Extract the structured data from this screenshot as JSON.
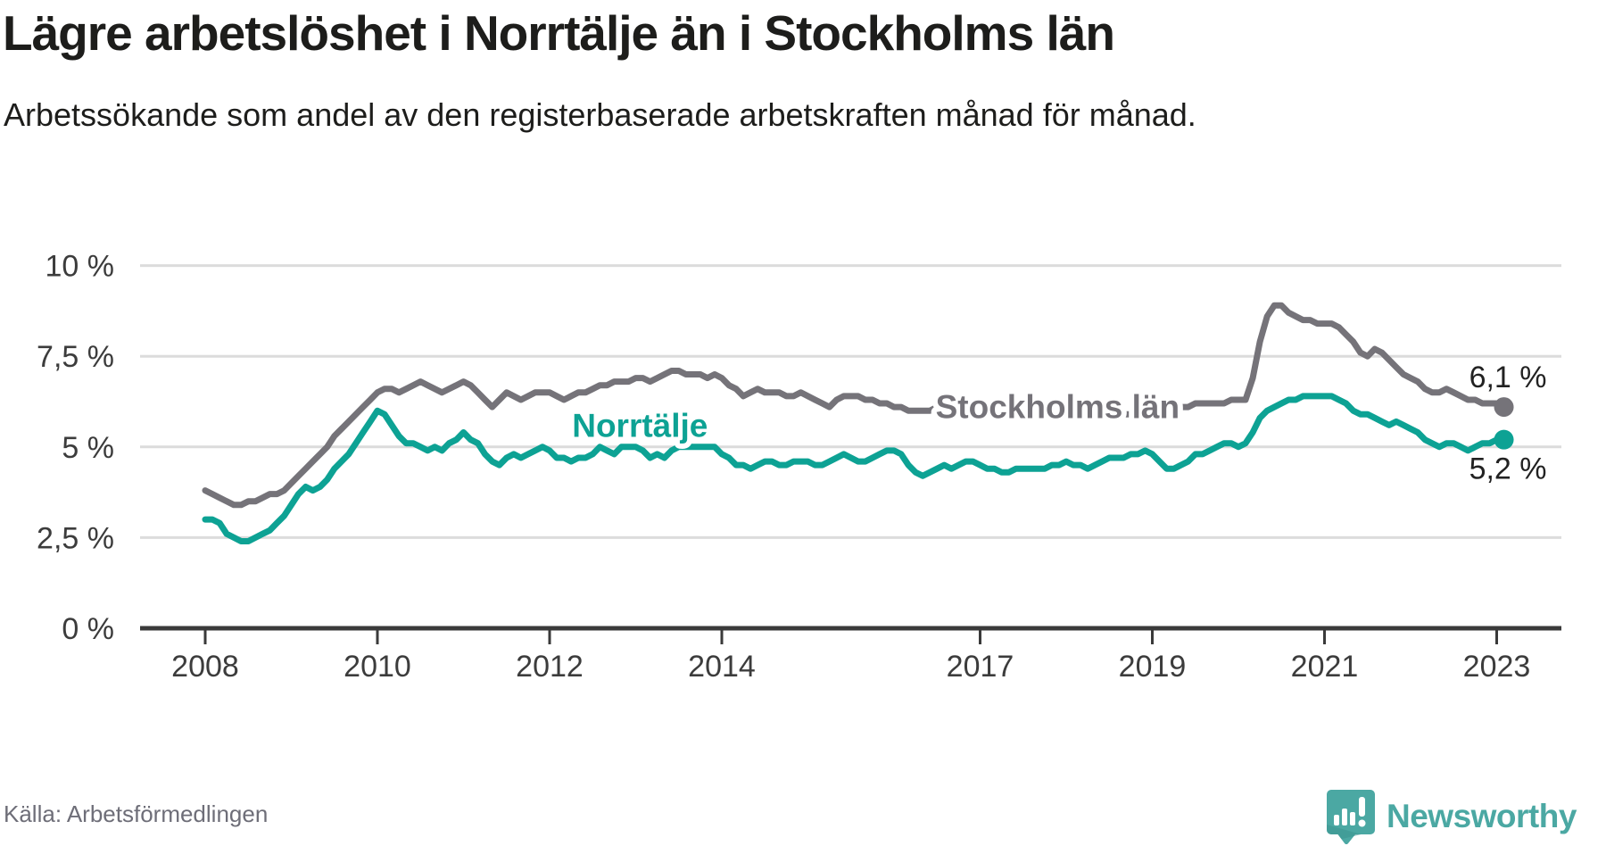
{
  "header": {
    "title": "Lägre arbetslöshet i Norrtälje än i Stockholms län",
    "subtitle": "Arbetssökande som andel av den registerbaserade arbetskraften månad för månad."
  },
  "footer": {
    "source": "Källa: Arbetsförmedlingen",
    "brand": "Newsworthy"
  },
  "colors": {
    "norrtalje_line": "#0da294",
    "stockholm_line": "#757379",
    "axis": "#3a3a3a",
    "grid": "#dcdcdc",
    "title_text": "#1d1d1b",
    "tick_text": "#3c3c3c",
    "end_label_text": "#222222",
    "source_text": "#6e6e78",
    "brand_teal": "#4ba8a3"
  },
  "chart_data": {
    "type": "line",
    "title": "Lägre arbetslöshet i Norrtälje än i Stockholms län",
    "subtitle": "Arbetssökande som andel av den registerbaserade arbetskraften månad för månad.",
    "x_unit": "month",
    "x_start": "2008-01",
    "x_end": "2023-02",
    "ylim": [
      0,
      10
    ],
    "grid": "horizontal",
    "legend_position": "inline-labels",
    "yticks": {
      "values": [
        0,
        2.5,
        5,
        7.5,
        10
      ],
      "labels": [
        "0 %",
        "2,5 %",
        "5 %",
        "7,5 %",
        "10 %"
      ]
    },
    "xticks": {
      "values": [
        2008,
        2010,
        2012,
        2014,
        2017,
        2019,
        2021,
        2023
      ],
      "labels": [
        "2008",
        "2010",
        "2012",
        "2014",
        "2017",
        "2019",
        "2021",
        "2023"
      ]
    },
    "series": [
      {
        "name": "Stockholms län",
        "color": "#757379",
        "end_label": "6,1 %",
        "end_value": 6.1,
        "values": [
          3.8,
          3.7,
          3.6,
          3.5,
          3.4,
          3.4,
          3.5,
          3.5,
          3.6,
          3.7,
          3.7,
          3.8,
          4.0,
          4.2,
          4.4,
          4.6,
          4.8,
          5.0,
          5.3,
          5.5,
          5.7,
          5.9,
          6.1,
          6.3,
          6.5,
          6.6,
          6.6,
          6.5,
          6.6,
          6.7,
          6.8,
          6.7,
          6.6,
          6.5,
          6.6,
          6.7,
          6.8,
          6.7,
          6.5,
          6.3,
          6.1,
          6.3,
          6.5,
          6.4,
          6.3,
          6.4,
          6.5,
          6.5,
          6.5,
          6.4,
          6.3,
          6.4,
          6.5,
          6.5,
          6.6,
          6.7,
          6.7,
          6.8,
          6.8,
          6.8,
          6.9,
          6.9,
          6.8,
          6.9,
          7.0,
          7.1,
          7.1,
          7.0,
          7.0,
          7.0,
          6.9,
          7.0,
          6.9,
          6.7,
          6.6,
          6.4,
          6.5,
          6.6,
          6.5,
          6.5,
          6.5,
          6.4,
          6.4,
          6.5,
          6.4,
          6.3,
          6.2,
          6.1,
          6.3,
          6.4,
          6.4,
          6.4,
          6.3,
          6.3,
          6.2,
          6.2,
          6.1,
          6.1,
          6.0,
          6.0,
          6.0,
          6.0,
          6.1,
          6.1,
          6.0,
          5.9,
          5.9,
          5.9,
          5.9,
          5.9,
          5.9,
          5.9,
          5.9,
          5.9,
          6.0,
          6.0,
          5.9,
          5.9,
          5.9,
          6.0,
          6.0,
          5.9,
          5.9,
          5.8,
          5.8,
          5.9,
          6.0,
          6.0,
          5.9,
          5.9,
          5.9,
          6.0,
          6.0,
          6.0,
          6.0,
          6.0,
          6.1,
          6.1,
          6.2,
          6.2,
          6.2,
          6.2,
          6.2,
          6.3,
          6.3,
          6.3,
          6.9,
          7.9,
          8.6,
          8.9,
          8.9,
          8.7,
          8.6,
          8.5,
          8.5,
          8.4,
          8.4,
          8.4,
          8.3,
          8.1,
          7.9,
          7.6,
          7.5,
          7.7,
          7.6,
          7.4,
          7.2,
          7.0,
          6.9,
          6.8,
          6.6,
          6.5,
          6.5,
          6.6,
          6.5,
          6.4,
          6.3,
          6.3,
          6.2,
          6.2,
          6.2,
          6.1
        ]
      },
      {
        "name": "Norrtälje",
        "color": "#0da294",
        "end_label": "5,2 %",
        "end_value": 5.2,
        "values": [
          3.0,
          3.0,
          2.9,
          2.6,
          2.5,
          2.4,
          2.4,
          2.5,
          2.6,
          2.7,
          2.9,
          3.1,
          3.4,
          3.7,
          3.9,
          3.8,
          3.9,
          4.1,
          4.4,
          4.6,
          4.8,
          5.1,
          5.4,
          5.7,
          6.0,
          5.9,
          5.6,
          5.3,
          5.1,
          5.1,
          5.0,
          4.9,
          5.0,
          4.9,
          5.1,
          5.2,
          5.4,
          5.2,
          5.1,
          4.8,
          4.6,
          4.5,
          4.7,
          4.8,
          4.7,
          4.8,
          4.9,
          5.0,
          4.9,
          4.7,
          4.7,
          4.6,
          4.7,
          4.7,
          4.8,
          5.0,
          4.9,
          4.8,
          5.0,
          5.0,
          5.0,
          4.9,
          4.7,
          4.8,
          4.7,
          4.9,
          5.0,
          5.0,
          5.0,
          5.0,
          5.0,
          5.0,
          4.8,
          4.7,
          4.5,
          4.5,
          4.4,
          4.5,
          4.6,
          4.6,
          4.5,
          4.5,
          4.6,
          4.6,
          4.6,
          4.5,
          4.5,
          4.6,
          4.7,
          4.8,
          4.7,
          4.6,
          4.6,
          4.7,
          4.8,
          4.9,
          4.9,
          4.8,
          4.5,
          4.3,
          4.2,
          4.3,
          4.4,
          4.5,
          4.4,
          4.5,
          4.6,
          4.6,
          4.5,
          4.4,
          4.4,
          4.3,
          4.3,
          4.4,
          4.4,
          4.4,
          4.4,
          4.4,
          4.5,
          4.5,
          4.6,
          4.5,
          4.5,
          4.4,
          4.5,
          4.6,
          4.7,
          4.7,
          4.7,
          4.8,
          4.8,
          4.9,
          4.8,
          4.6,
          4.4,
          4.4,
          4.5,
          4.6,
          4.8,
          4.8,
          4.9,
          5.0,
          5.1,
          5.1,
          5.0,
          5.1,
          5.4,
          5.8,
          6.0,
          6.1,
          6.2,
          6.3,
          6.3,
          6.4,
          6.4,
          6.4,
          6.4,
          6.4,
          6.3,
          6.2,
          6.0,
          5.9,
          5.9,
          5.8,
          5.7,
          5.6,
          5.7,
          5.6,
          5.5,
          5.4,
          5.2,
          5.1,
          5.0,
          5.1,
          5.1,
          5.0,
          4.9,
          5.0,
          5.1,
          5.1,
          5.2,
          5.2
        ]
      }
    ],
    "annotations": [
      {
        "text": "Stockholms län",
        "x": 2017.9,
        "y": 5.8,
        "series": "Stockholms län"
      },
      {
        "text": "Norrtälje",
        "x": 2013.05,
        "y": 5.28,
        "series": "Norrtälje"
      }
    ]
  }
}
